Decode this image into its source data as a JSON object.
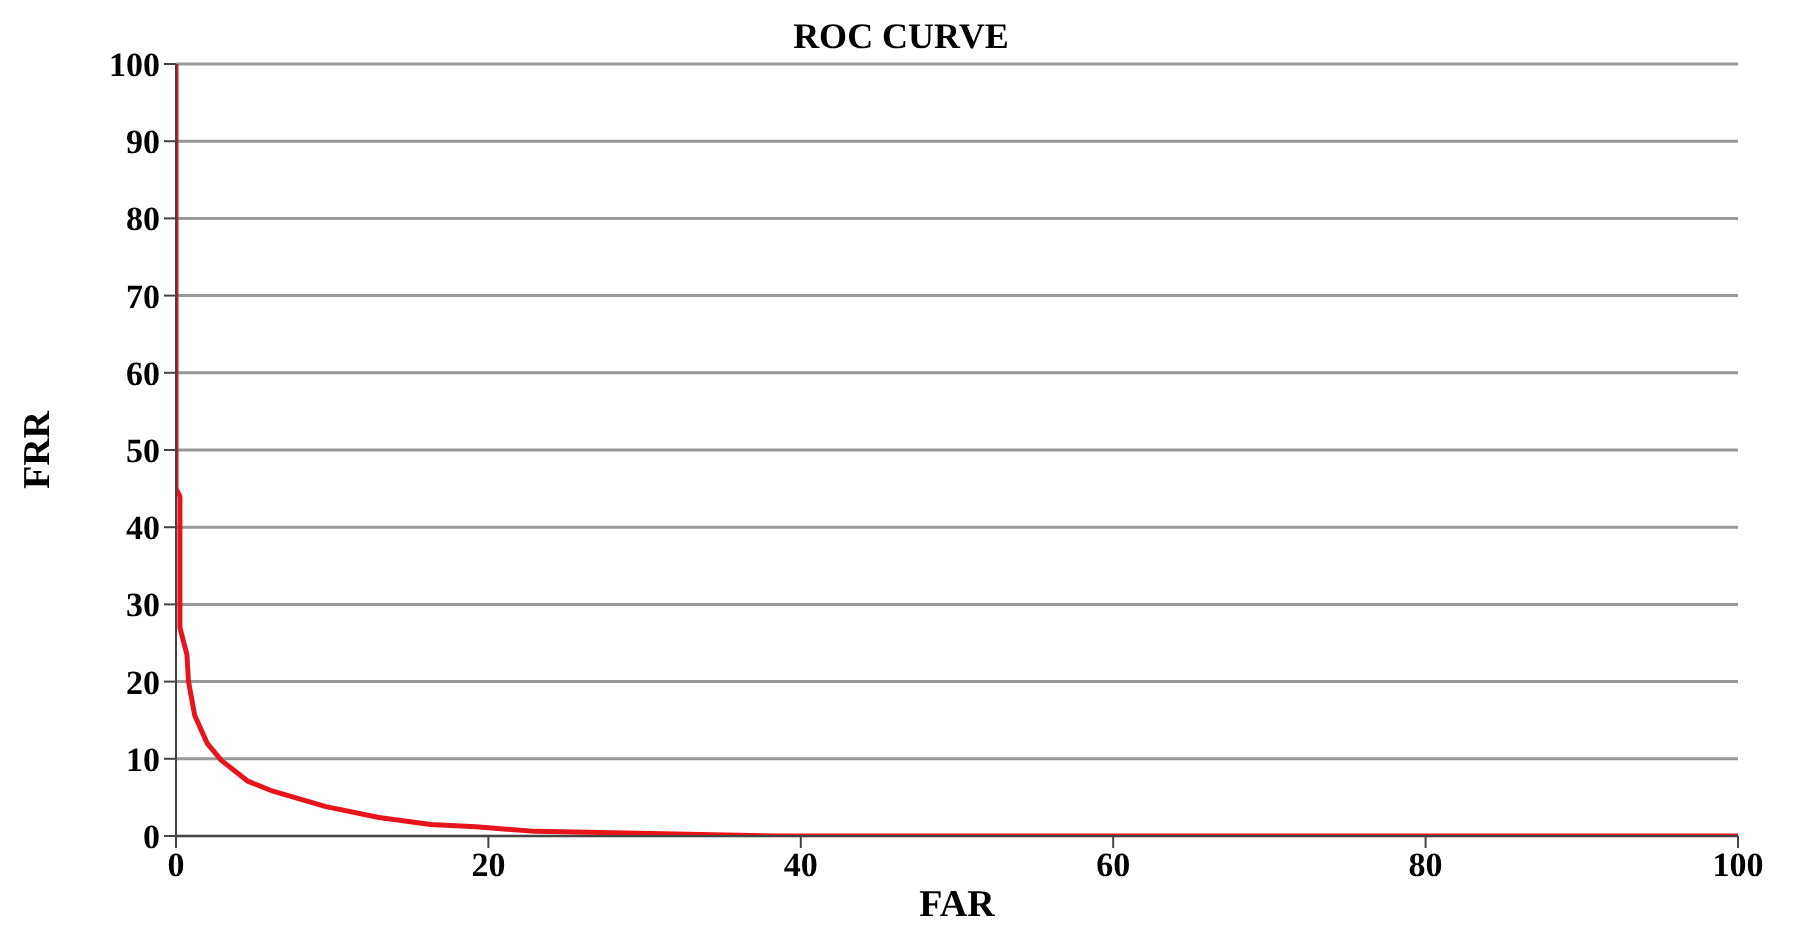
{
  "chart_data": {
    "type": "line",
    "title": "ROC CURVE",
    "xlabel": "FAR",
    "ylabel": "FRR",
    "x": [
      0,
      0,
      0.25,
      0.25,
      0.7,
      0.8,
      1.2,
      2.0,
      2.9,
      4.6,
      6.2,
      9.6,
      13,
      16.3,
      19.2,
      23,
      26.3,
      38.5,
      50,
      70,
      100
    ],
    "series": [
      {
        "color": "#e8141c",
        "values": [
          100,
          45,
          44,
          27,
          23.5,
          20,
          15.6,
          12,
          9.8,
          7.1,
          5.8,
          3.8,
          2.4,
          1.5,
          1.2,
          0.6,
          0.5,
          0,
          0,
          0,
          0
        ]
      }
    ],
    "xlim": [
      0,
      100
    ],
    "xticks": [
      0,
      20,
      40,
      60,
      80,
      100
    ],
    "ylim": [
      0,
      100
    ],
    "yticks": [
      0,
      10,
      20,
      30,
      40,
      50,
      60,
      70,
      80,
      90,
      100
    ],
    "grid": "y",
    "legend": false,
    "marker": "none",
    "line_style": "solid"
  }
}
